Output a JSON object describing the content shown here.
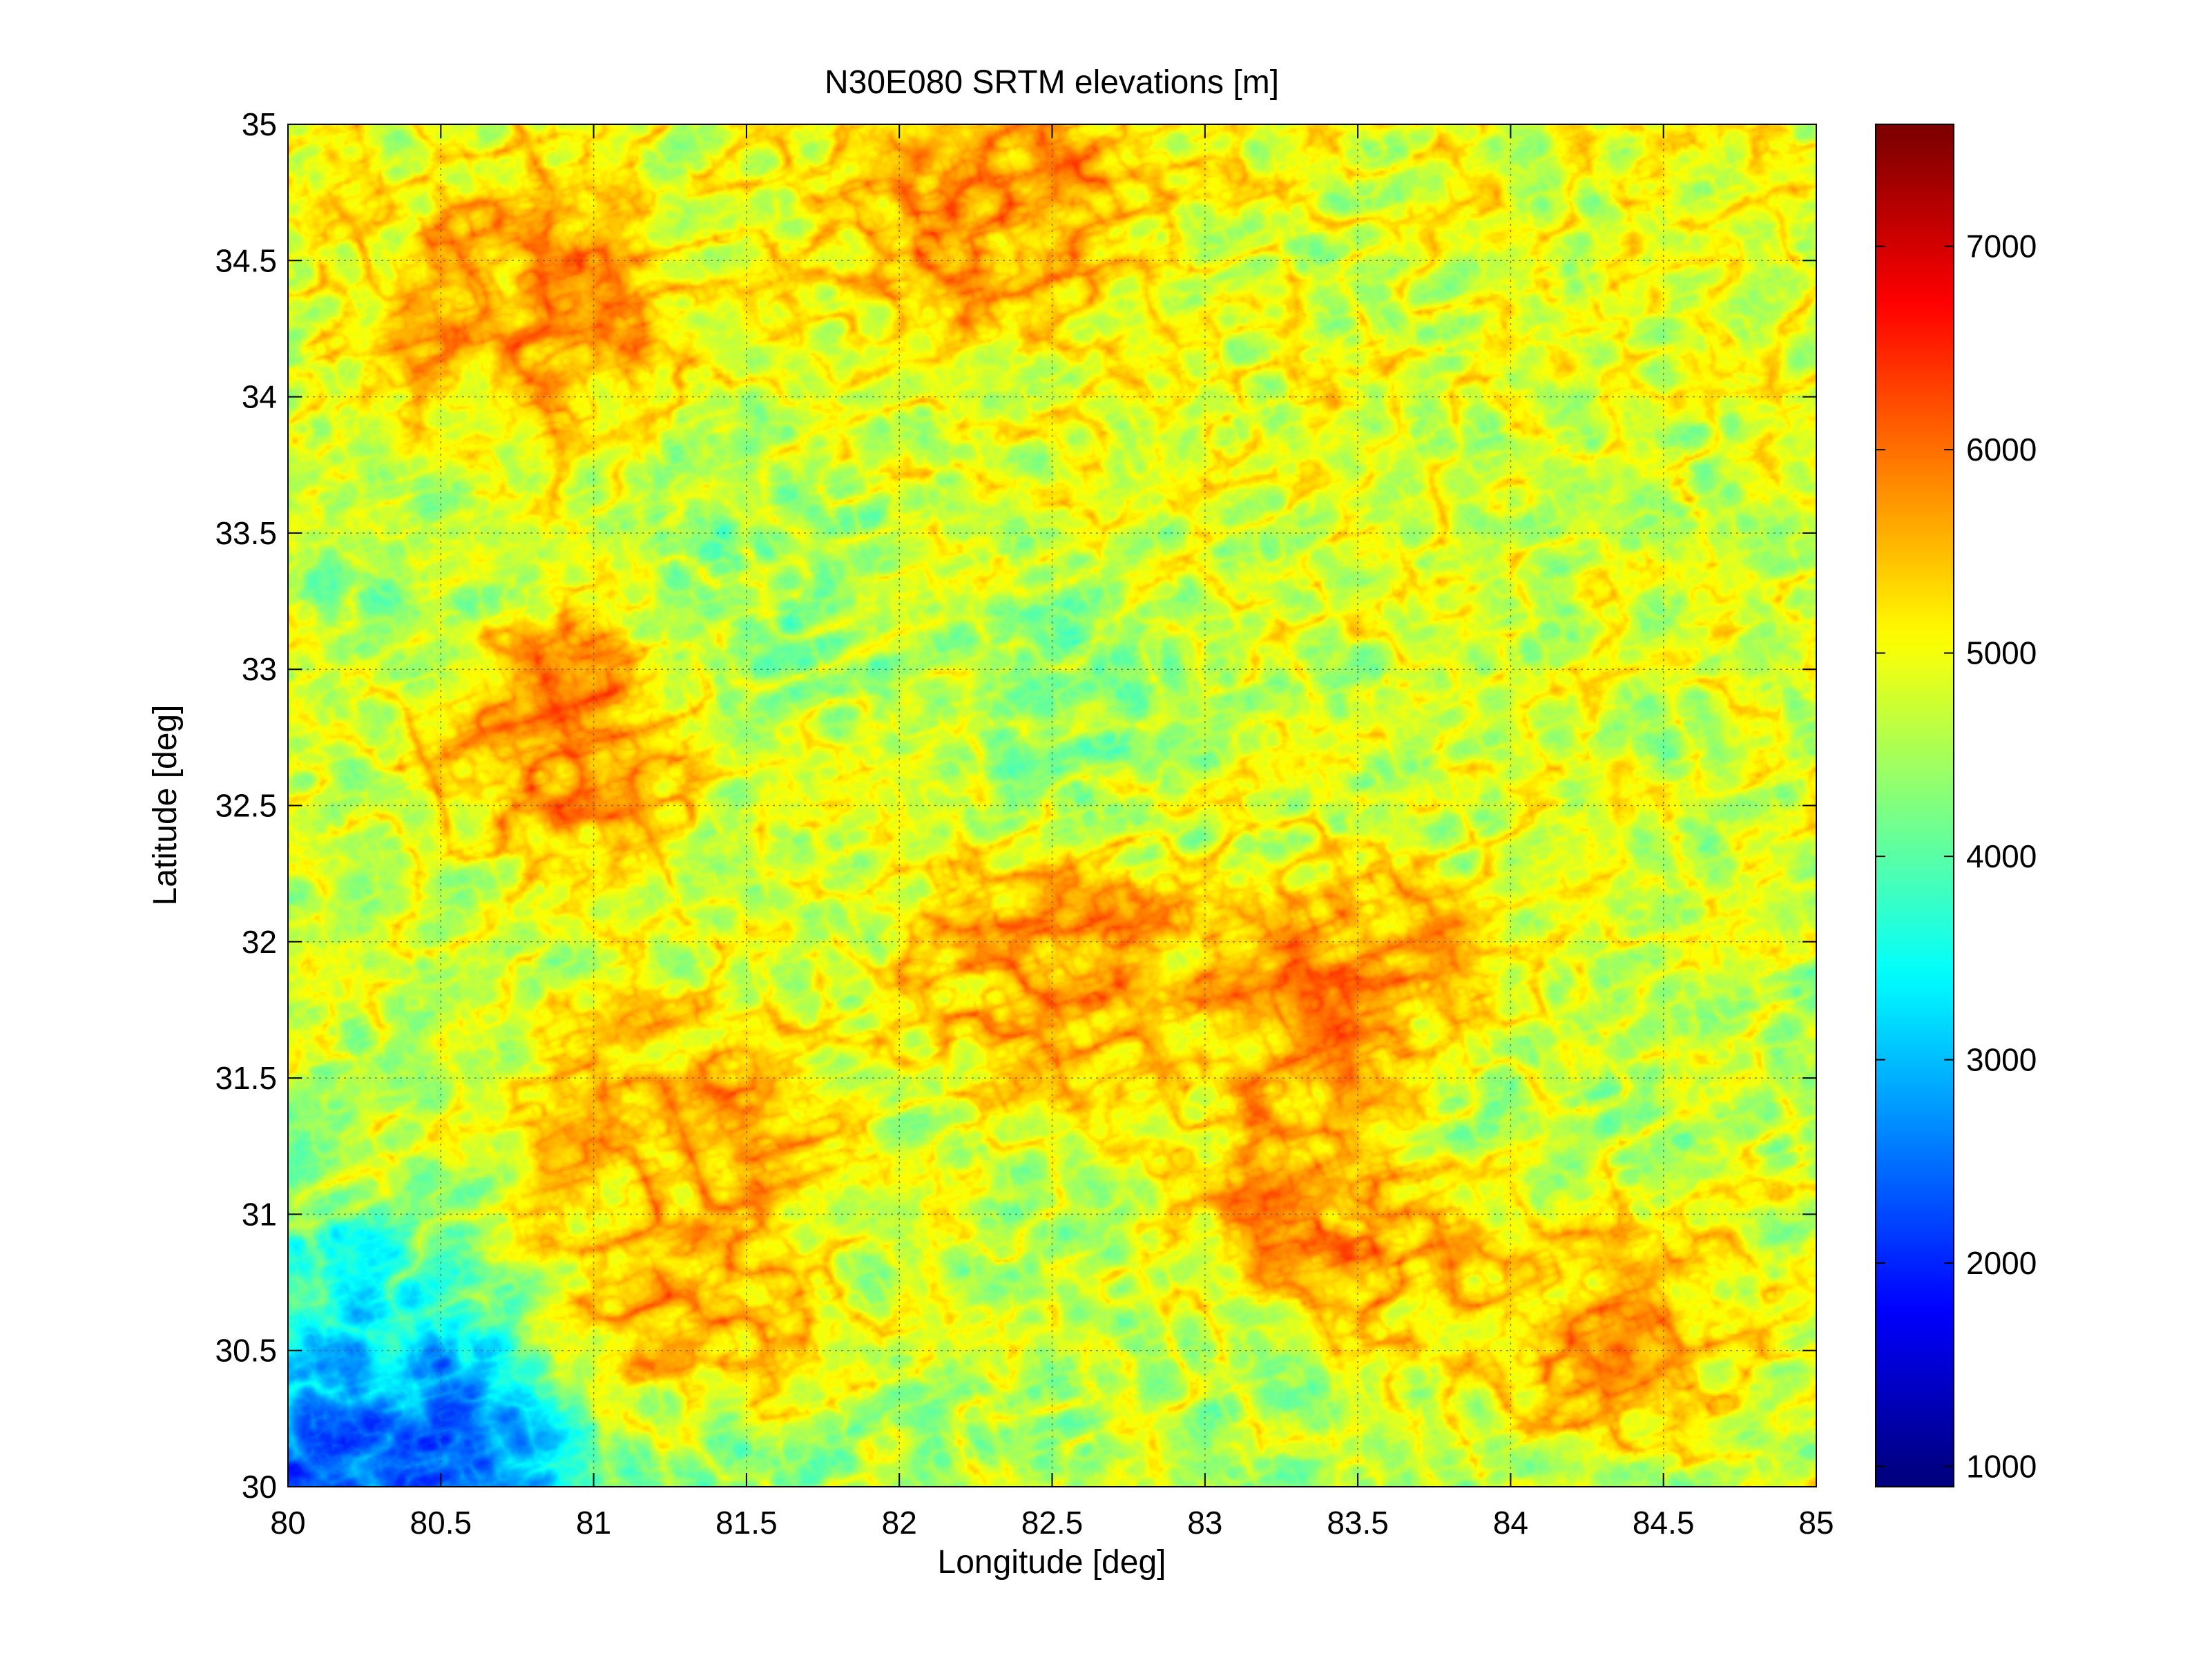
{
  "chart_data": {
    "type": "heatmap",
    "title": "N30E080 SRTM elevations [m]",
    "xlabel": "Longitude [deg]",
    "ylabel": "Latitude [deg]",
    "xlim": [
      80,
      85
    ],
    "ylim": [
      30,
      35
    ],
    "xticks": [
      80,
      80.5,
      81,
      81.5,
      82,
      82.5,
      83,
      83.5,
      84,
      84.5,
      85
    ],
    "yticks": [
      30,
      30.5,
      31,
      31.5,
      32,
      32.5,
      33,
      33.5,
      34,
      34.5,
      35
    ],
    "x_tick_labels": [
      "80",
      "80.5",
      "81",
      "81.5",
      "82",
      "82.5",
      "83",
      "83.5",
      "84",
      "84.5",
      "85"
    ],
    "y_tick_labels": [
      "30",
      "30.5",
      "31",
      "31.5",
      "32",
      "32.5",
      "33",
      "33.5",
      "34",
      "34.5",
      "35"
    ],
    "grid": true,
    "colormap": "jet",
    "colorbar": {
      "range": [
        900,
        7600
      ],
      "ticks": [
        1000,
        2000,
        3000,
        4000,
        5000,
        6000,
        7000
      ],
      "tick_labels": [
        "1000",
        "2000",
        "3000",
        "4000",
        "5000",
        "6000",
        "7000"
      ],
      "placement": "right"
    },
    "features": [
      {
        "lon": 80.2,
        "lat": 30.1,
        "elevation": 1500
      },
      {
        "lon": 80.6,
        "lat": 30.1,
        "elevation": 2000
      },
      {
        "lon": 80.1,
        "lat": 30.5,
        "elevation": 3200
      },
      {
        "lon": 81.3,
        "lat": 30.2,
        "elevation": 3600
      },
      {
        "lon": 80.4,
        "lat": 33.4,
        "elevation": 4300
      },
      {
        "lon": 81.5,
        "lat": 33.3,
        "elevation": 4300
      },
      {
        "lon": 82.5,
        "lat": 32.9,
        "elevation": 4300
      },
      {
        "lon": 83.8,
        "lat": 31.4,
        "elevation": 4400
      },
      {
        "lon": 80.9,
        "lat": 32.8,
        "elevation": 6100
      },
      {
        "lon": 81.3,
        "lat": 30.45,
        "elevation": 6500
      },
      {
        "lon": 83.5,
        "lat": 31.7,
        "elevation": 6200
      },
      {
        "lon": 83.5,
        "lat": 31.0,
        "elevation": 6000
      },
      {
        "lon": 82.3,
        "lat": 34.7,
        "elevation": 5900
      },
      {
        "lon": 80.8,
        "lat": 34.3,
        "elevation": 5900
      },
      {
        "lon": 82.5,
        "lat": 31.9,
        "elevation": 5900
      },
      {
        "lon": 81.3,
        "lat": 31.3,
        "elevation": 5800
      },
      {
        "lon": 84.3,
        "lat": 30.6,
        "elevation": 5800
      }
    ]
  }
}
